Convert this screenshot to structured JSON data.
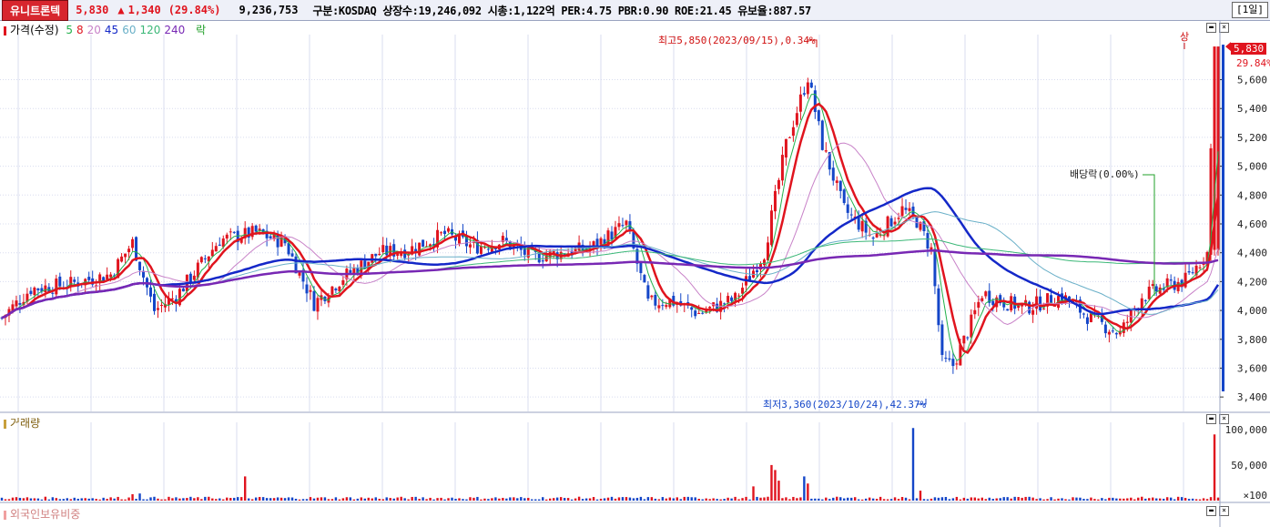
{
  "header": {
    "stock_name": "유니트론텍",
    "price": "5,830",
    "change_arrow": "▲",
    "change": "1,340",
    "change_pct": "(29.84%)",
    "volume": "9,236,753",
    "info": "구분:KOSDAQ 상장수:19,246,092 시총:1,122억 PER:4.75 PBR:0.90 ROE:21.45 유보율:887.57",
    "period": "[1일]"
  },
  "legend": {
    "price_label": "가격(수정)",
    "ma": [
      {
        "label": "5",
        "color": "#22b14c"
      },
      {
        "label": "8",
        "color": "#e0141e"
      },
      {
        "label": "20",
        "color": "#c882c8"
      },
      {
        "label": "45",
        "color": "#1428c8"
      },
      {
        "label": "60",
        "color": "#6ab0c8"
      },
      {
        "label": "120",
        "color": "#3cb878"
      },
      {
        "label": "240",
        "color": "#7828b4"
      }
    ],
    "extra_label": "락",
    "extra_color": "#22a02a"
  },
  "volume_panel": {
    "label": "거래량"
  },
  "foreign_panel": {
    "label": "외국인보유비중"
  },
  "last_value": {
    "price": "5,830",
    "pct": "29.84%"
  },
  "annotations": {
    "high": "최고5,850(2023/09/15),0.34%",
    "low": "최저3,360(2023/10/24),42.37%",
    "ex_dividend": "배당락(0.00%)",
    "limit_up": "상"
  },
  "colors": {
    "up": "#e0141e",
    "down": "#1446c8",
    "grid": "#d8dcef"
  },
  "chart_data": {
    "type": "candlestick",
    "ylim": [
      3300,
      5900
    ],
    "price_ticks": [
      3400,
      3600,
      3800,
      4000,
      4200,
      4400,
      4600,
      4800,
      5000,
      5200,
      5400,
      5600
    ],
    "price_tick_labels": [
      "3,400",
      "3,600",
      "3,800",
      "4,000",
      "4,200",
      "4,400",
      "4,600",
      "4,800",
      "5,000",
      "5,200",
      "5,400",
      "5,600"
    ],
    "volume_ylim": [
      0,
      110000
    ],
    "volume_tick_labels": [
      "100,000",
      "50,000",
      "×100"
    ],
    "volume_ticks": [
      100000,
      50000,
      0
    ],
    "waypoints": [
      [
        0,
        3950
      ],
      [
        8,
        4150
      ],
      [
        18,
        4180
      ],
      [
        30,
        4250
      ],
      [
        36,
        4470
      ],
      [
        42,
        4000
      ],
      [
        48,
        4100
      ],
      [
        60,
        4490
      ],
      [
        70,
        4540
      ],
      [
        78,
        4470
      ],
      [
        86,
        4050
      ],
      [
        94,
        4230
      ],
      [
        104,
        4400
      ],
      [
        112,
        4420
      ],
      [
        122,
        4530
      ],
      [
        130,
        4440
      ],
      [
        138,
        4480
      ],
      [
        146,
        4370
      ],
      [
        154,
        4400
      ],
      [
        162,
        4430
      ],
      [
        172,
        4600
      ],
      [
        178,
        4050
      ],
      [
        184,
        4070
      ],
      [
        192,
        3980
      ],
      [
        202,
        4080
      ],
      [
        210,
        4400
      ],
      [
        216,
        5150
      ],
      [
        222,
        5620
      ],
      [
        226,
        5150
      ],
      [
        232,
        4700
      ],
      [
        240,
        4500
      ],
      [
        248,
        4700
      ],
      [
        252,
        4620
      ],
      [
        256,
        4420
      ],
      [
        259,
        3640
      ],
      [
        262,
        3620
      ],
      [
        266,
        3850
      ],
      [
        270,
        4120
      ],
      [
        276,
        4060
      ],
      [
        282,
        4020
      ],
      [
        292,
        4100
      ],
      [
        300,
        3940
      ],
      [
        308,
        3840
      ],
      [
        314,
        4100
      ],
      [
        320,
        4160
      ],
      [
        326,
        4210
      ],
      [
        332,
        4400
      ],
      [
        334,
        5830
      ]
    ],
    "moving_averages": [
      {
        "name": "5",
        "period": 5,
        "color": "#22b14c",
        "width": 1
      },
      {
        "name": "8",
        "period": 8,
        "color": "#e0141e",
        "width": 2.5
      },
      {
        "name": "20",
        "period": 20,
        "color": "#c882c8",
        "width": 1
      },
      {
        "name": "45",
        "period": 45,
        "color": "#1428c8",
        "width": 2.5
      },
      {
        "name": "60",
        "period": 60,
        "color": "#6ab0c8",
        "width": 1
      },
      {
        "name": "120",
        "period": 120,
        "color": "#3cb878",
        "width": 1
      },
      {
        "name": "240",
        "period": 240,
        "color": "#7828b4",
        "width": 2.5
      }
    ],
    "volume_spikes": [
      {
        "x": 36,
        "value": 9000
      },
      {
        "x": 38,
        "value": 10000
      },
      {
        "x": 67,
        "value": 34000
      },
      {
        "x": 207,
        "value": 20000
      },
      {
        "x": 212,
        "value": 50000
      },
      {
        "x": 213,
        "value": 43000
      },
      {
        "x": 214,
        "value": 28000
      },
      {
        "x": 221,
        "value": 34000
      },
      {
        "x": 222,
        "value": 24000
      },
      {
        "x": 251,
        "value": 102000
      },
      {
        "x": 253,
        "value": 14000
      },
      {
        "x": 334,
        "value": 93000
      }
    ]
  }
}
